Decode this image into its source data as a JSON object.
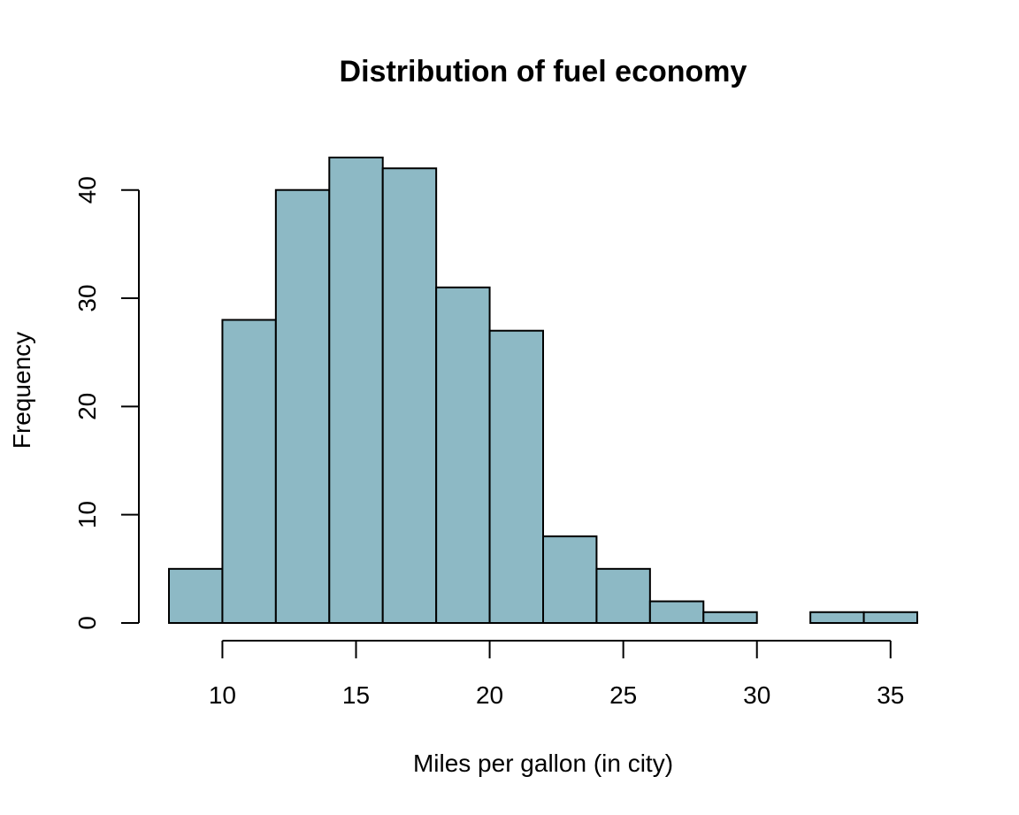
{
  "chart_data": {
    "type": "bar",
    "subtype": "histogram",
    "title": "Distribution of fuel economy",
    "xlabel": "Miles per gallon (in city)",
    "ylabel": "Frequency",
    "bins": [
      {
        "start": 8,
        "end": 10,
        "count": 5
      },
      {
        "start": 10,
        "end": 12,
        "count": 28
      },
      {
        "start": 12,
        "end": 14,
        "count": 40
      },
      {
        "start": 14,
        "end": 16,
        "count": 43
      },
      {
        "start": 16,
        "end": 18,
        "count": 42
      },
      {
        "start": 18,
        "end": 20,
        "count": 31
      },
      {
        "start": 20,
        "end": 22,
        "count": 27
      },
      {
        "start": 22,
        "end": 24,
        "count": 8
      },
      {
        "start": 24,
        "end": 26,
        "count": 5
      },
      {
        "start": 26,
        "end": 28,
        "count": 2
      },
      {
        "start": 28,
        "end": 30,
        "count": 1
      },
      {
        "start": 30,
        "end": 32,
        "count": 0
      },
      {
        "start": 32,
        "end": 34,
        "count": 1
      },
      {
        "start": 34,
        "end": 36,
        "count": 1
      }
    ],
    "x_ticks": [
      10,
      15,
      20,
      25,
      30,
      35
    ],
    "y_ticks": [
      0,
      10,
      20,
      30,
      40
    ],
    "xlim": [
      8,
      36
    ],
    "ylim": [
      0,
      43
    ],
    "grid": false,
    "bar_color": "#8db9c5",
    "edge_color": "#000000"
  }
}
